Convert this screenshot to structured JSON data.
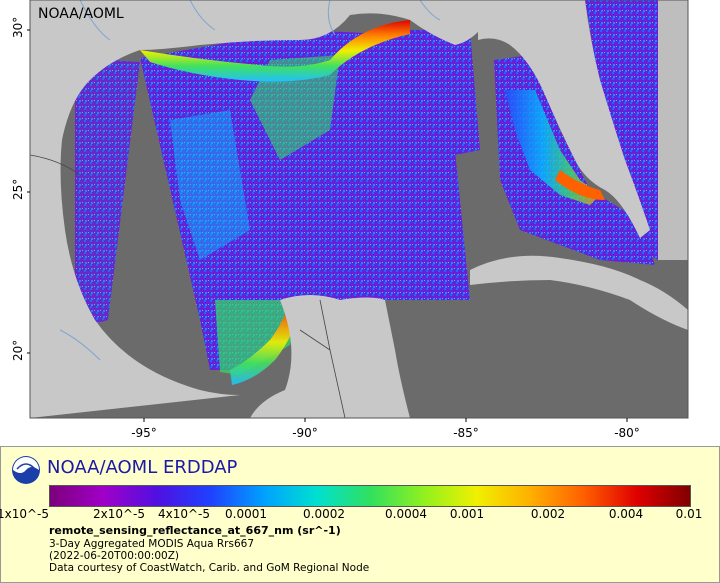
{
  "map": {
    "watermark": "NOAA/AOML",
    "x_ticks": [
      "-95°",
      "-90°",
      "-85°",
      "-80°"
    ],
    "y_ticks": [
      "30°",
      "25°",
      "20°"
    ],
    "colors": {
      "ocean_nodata": "#6b6b6b",
      "land": "#c8c8c8",
      "rivers": "#7fa6d0",
      "borders": "#444444"
    }
  },
  "legend": {
    "title": "NOAA/AOML ERDDAP",
    "colorbar_stops": [
      "#7b007b",
      "#a000c8",
      "#5010e0",
      "#2040ff",
      "#00a0ff",
      "#00e0d0",
      "#30e060",
      "#90f020",
      "#f0f000",
      "#ffb000",
      "#ff6000",
      "#e00000",
      "#800000"
    ],
    "tick_labels": [
      "1x10^-5",
      "2x10^-5",
      "4x10^-5",
      "0.0001",
      "0.0002",
      "0.0004",
      "0.001",
      "0.002",
      "0.004",
      "0.01"
    ],
    "variable": "remote_sensing_reflectance_at_667_nm (sr^-1)",
    "dataset": "3-Day Aggregated MODIS Aqua Rrs667",
    "time": "(2022-06-20T00:00:00Z)",
    "credit": "Data courtesy of CoastWatch, Carib. and GoM Regional Node"
  }
}
